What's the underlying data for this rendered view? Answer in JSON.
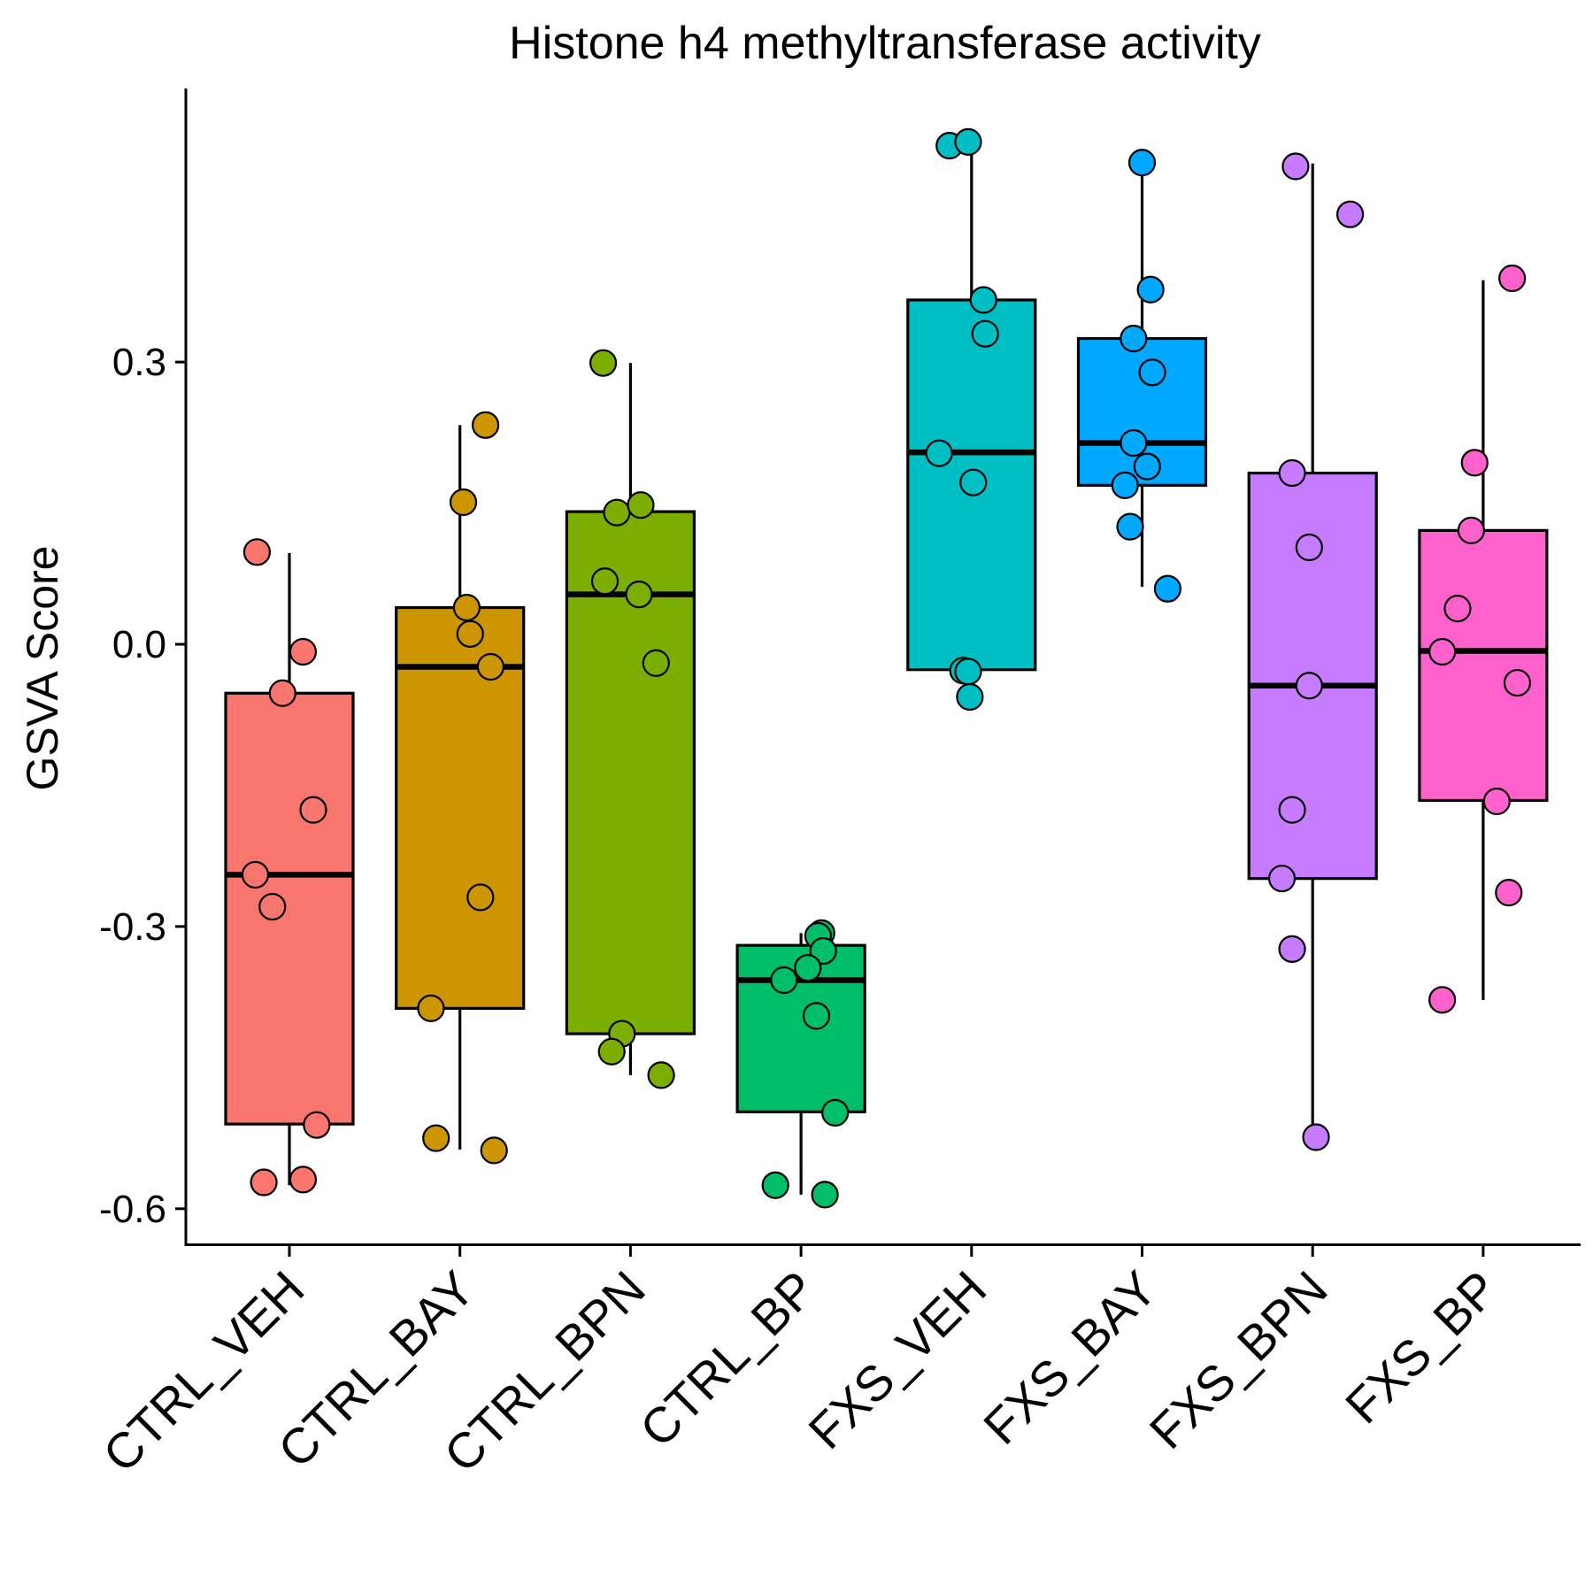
{
  "chart_data": {
    "type": "box",
    "title": "Histone h4 methyltransferase activity",
    "xlabel": "",
    "ylabel": "GSVA Score",
    "y_ticks": [
      0.3,
      0.0,
      -0.3,
      -0.6
    ],
    "y_tick_labels": [
      "0.3",
      "0.0",
      "-0.3",
      "-0.6"
    ],
    "ylim": [
      -0.64,
      0.58
    ],
    "legend": "none",
    "grid": false,
    "categories": [
      "CTRL_VEH",
      "CTRL_BAY",
      "CTRL_BPN",
      "CTRL_BP",
      "FXS_VEH",
      "FXS_BAY",
      "FXS_BPN",
      "FXS_BP"
    ],
    "colors": [
      "#F8766D",
      "#CD9600",
      "#7CAE00",
      "#00BE67",
      "#00BFC4",
      "#00A9FF",
      "#C77CFF",
      "#FF61CC"
    ],
    "boxes": [
      {
        "min": -0.575,
        "q1": -0.51,
        "median": -0.245,
        "q3": -0.052,
        "max": 0.097
      },
      {
        "min": -0.537,
        "q1": -0.387,
        "median": -0.024,
        "q3": 0.039,
        "max": 0.233
      },
      {
        "min": -0.458,
        "q1": -0.414,
        "median": 0.053,
        "q3": 0.141,
        "max": 0.299
      },
      {
        "min": -0.585,
        "q1": -0.497,
        "median": -0.357,
        "q3": -0.32,
        "max": -0.307
      },
      {
        "min": -0.055,
        "q1": -0.027,
        "median": 0.204,
        "q3": 0.366,
        "max": 0.534
      },
      {
        "min": 0.061,
        "q1": 0.169,
        "median": 0.214,
        "q3": 0.325,
        "max": 0.513
      },
      {
        "min": -0.525,
        "q1": -0.249,
        "median": -0.044,
        "q3": 0.182,
        "max": 0.511
      },
      {
        "min": -0.378,
        "q1": -0.166,
        "median": -0.007,
        "q3": 0.121,
        "max": 0.387
      }
    ],
    "points": [
      [
        [
          -0.19,
          0.098
        ],
        [
          0.08,
          -0.008
        ],
        [
          -0.04,
          -0.052
        ],
        [
          0.14,
          -0.176
        ],
        [
          -0.2,
          -0.245
        ],
        [
          -0.1,
          -0.279
        ],
        [
          0.16,
          -0.511
        ],
        [
          -0.15,
          -0.572
        ],
        [
          0.08,
          -0.569
        ]
      ],
      [
        [
          0.02,
          0.151
        ],
        [
          0.15,
          0.233
        ],
        [
          0.04,
          0.039
        ],
        [
          0.06,
          0.011
        ],
        [
          0.18,
          -0.024
        ],
        [
          0.12,
          -0.269
        ],
        [
          -0.17,
          -0.387
        ],
        [
          -0.14,
          -0.525
        ],
        [
          0.2,
          -0.538
        ]
      ],
      [
        [
          -0.16,
          0.299
        ],
        [
          -0.08,
          0.14
        ],
        [
          0.06,
          0.148
        ],
        [
          -0.15,
          0.067
        ],
        [
          0.05,
          0.053
        ],
        [
          0.15,
          -0.02
        ],
        [
          -0.05,
          -0.414
        ],
        [
          -0.11,
          -0.433
        ],
        [
          0.18,
          -0.458
        ]
      ],
      [
        [
          0.12,
          -0.307
        ],
        [
          0.1,
          -0.31
        ],
        [
          0.13,
          -0.326
        ],
        [
          0.04,
          -0.344
        ],
        [
          -0.1,
          -0.357
        ],
        [
          0.09,
          -0.395
        ],
        [
          0.2,
          -0.498
        ],
        [
          -0.15,
          -0.575
        ],
        [
          0.14,
          -0.585
        ]
      ],
      [
        [
          -0.13,
          0.53
        ],
        [
          -0.02,
          0.534
        ],
        [
          0.07,
          0.366
        ],
        [
          0.08,
          0.33
        ],
        [
          -0.19,
          0.203
        ],
        [
          0.01,
          0.172
        ],
        [
          -0.05,
          -0.028
        ],
        [
          -0.02,
          -0.029
        ],
        [
          -0.01,
          -0.056
        ]
      ],
      [
        [
          0.0,
          0.512
        ],
        [
          0.05,
          0.377
        ],
        [
          -0.05,
          0.325
        ],
        [
          0.06,
          0.289
        ],
        [
          -0.05,
          0.214
        ],
        [
          0.03,
          0.189
        ],
        [
          -0.1,
          0.169
        ],
        [
          -0.07,
          0.125
        ],
        [
          0.15,
          0.059
        ]
      ],
      [
        [
          -0.1,
          0.508
        ],
        [
          0.22,
          0.457
        ],
        [
          -0.12,
          0.182
        ],
        [
          -0.02,
          0.103
        ],
        [
          -0.02,
          -0.044
        ],
        [
          -0.12,
          -0.176
        ],
        [
          -0.18,
          -0.249
        ],
        [
          -0.12,
          -0.324
        ],
        [
          0.02,
          -0.524
        ]
      ],
      [
        [
          0.17,
          0.389
        ],
        [
          -0.05,
          0.193
        ],
        [
          -0.07,
          0.121
        ],
        [
          -0.15,
          0.038
        ],
        [
          -0.24,
          -0.008
        ],
        [
          0.2,
          -0.041
        ],
        [
          0.08,
          -0.167
        ],
        [
          0.15,
          -0.264
        ],
        [
          -0.24,
          -0.378
        ]
      ]
    ]
  }
}
